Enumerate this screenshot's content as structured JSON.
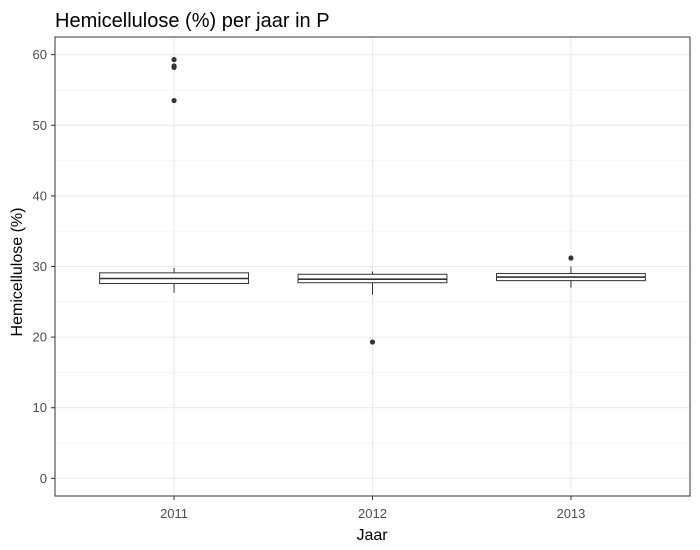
{
  "chart_data": {
    "type": "boxplot",
    "title": "Hemicellulose (%) per jaar in P",
    "xlabel": "Jaar",
    "ylabel": "Hemicellulose (%)",
    "categories": [
      "2011",
      "2012",
      "2013"
    ],
    "ylim": [
      -2.5,
      62.5
    ],
    "yticks": [
      0,
      10,
      20,
      30,
      40,
      50,
      60
    ],
    "grid": true,
    "boxes": [
      {
        "category": "2011",
        "whisker_low": 26.3,
        "q1": 27.6,
        "median": 28.3,
        "q3": 29.1,
        "whisker_high": 29.8,
        "outliers": [
          53.5,
          58.2,
          58.4,
          59.3
        ]
      },
      {
        "category": "2012",
        "whisker_low": 26.0,
        "q1": 27.7,
        "median": 28.2,
        "q3": 28.9,
        "whisker_high": 29.3,
        "outliers": [
          19.3
        ]
      },
      {
        "category": "2013",
        "whisker_low": 27.0,
        "q1": 28.0,
        "median": 28.5,
        "q3": 29.0,
        "whisker_high": 30.0,
        "outliers": [
          31.2
        ]
      }
    ],
    "colors": {
      "box_fill": "#ffffff",
      "box_line": "#333333",
      "outlier": "#333333",
      "panel_border": "#333333",
      "grid_major": "#ebebeb",
      "grid_minor": "#f5f5f5",
      "tick_label": "#4d4d4d"
    }
  }
}
